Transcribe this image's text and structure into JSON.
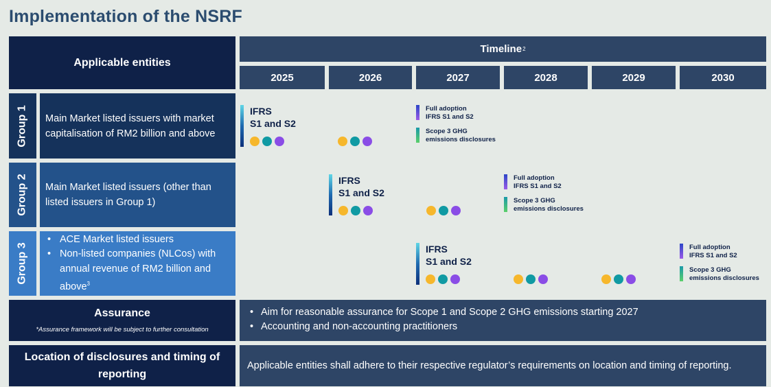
{
  "title": "Implementation of the NSRF",
  "header": {
    "entities_label": "Applicable entities",
    "timeline_label": "Timeline",
    "timeline_footnote": "2",
    "years": [
      "2025",
      "2026",
      "2027",
      "2028",
      "2029",
      "2030"
    ]
  },
  "groups": [
    {
      "tab": "Group 1",
      "description": "Main Market listed issuers with market capitalisation of RM2 billion and above"
    },
    {
      "tab": "Group 2",
      "description": "Main Market listed issuers (other than listed issuers in Group 1)"
    },
    {
      "tab": "Group 3",
      "bullets": [
        "ACE Market listed issuers",
        "Non-listed companies (NLCos) with annual revenue of RM2 billion and above"
      ],
      "footnote": "3"
    }
  ],
  "milestones": {
    "ifrs_line1": "IFRS",
    "ifrs_line2": "S1 and S2",
    "full_adoption_line1": "Full adoption",
    "full_adoption_line2": "IFRS S1 and S2",
    "scope3_line1": "Scope 3 GHG",
    "scope3_line2": "emissions disclosures"
  },
  "dot_colors": {
    "yellow": "#f6b72c",
    "teal": "#109aa3",
    "purple": "#8a4de6"
  },
  "assurance": {
    "title": "Assurance",
    "note": "*Assurance framework will be subject to further consultation",
    "points": [
      "Aim for reasonable assurance for Scope 1 and Scope 2 GHG emissions starting 2027",
      "Accounting and non-accounting practitioners"
    ]
  },
  "location": {
    "title": "Location of disclosures and timing of reporting",
    "text": "Applicable entities shall adhere to their respective regulator’s requirements on location and timing of reporting."
  }
}
